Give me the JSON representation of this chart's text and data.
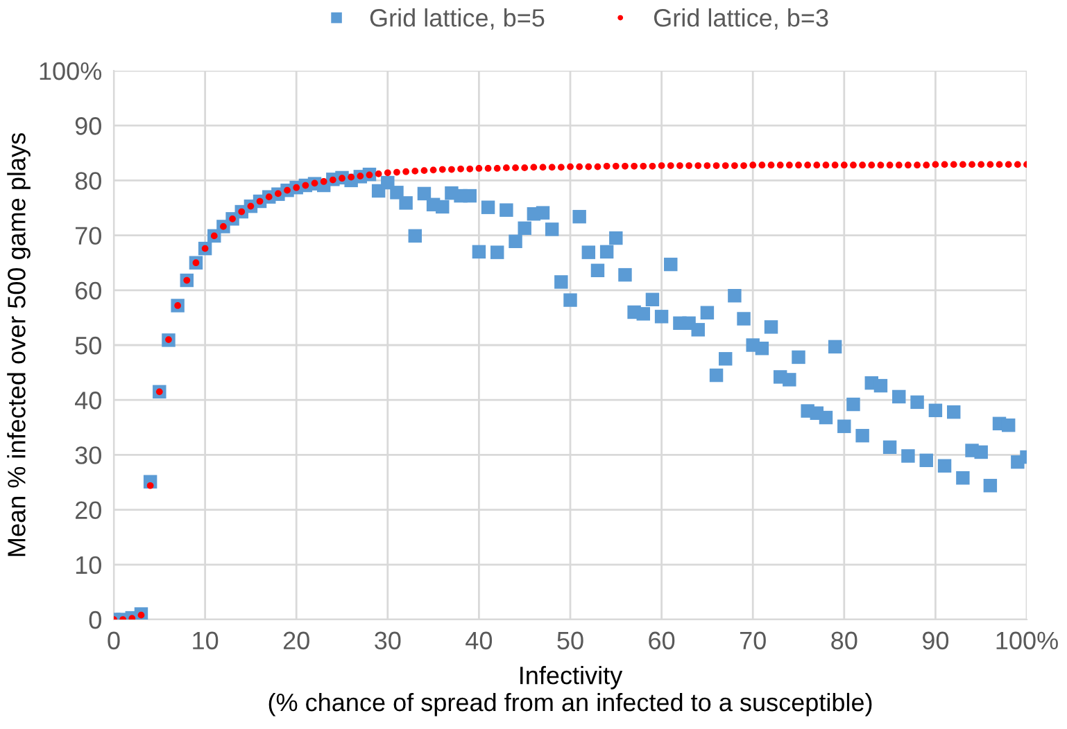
{
  "chart_data": {
    "type": "scatter",
    "xlabel": "Infectivity\n(% chance of spread from an infected to a susceptible)",
    "ylabel": "Mean % infected over 500 game plays",
    "x": [
      0,
      1,
      2,
      3,
      4,
      5,
      6,
      7,
      8,
      9,
      10,
      11,
      12,
      13,
      14,
      15,
      16,
      17,
      18,
      19,
      20,
      21,
      22,
      23,
      24,
      25,
      26,
      27,
      28,
      29,
      30,
      31,
      32,
      33,
      34,
      35,
      36,
      37,
      38,
      39,
      40,
      41,
      42,
      43,
      44,
      45,
      46,
      47,
      48,
      49,
      50,
      51,
      52,
      53,
      54,
      55,
      56,
      57,
      58,
      59,
      60,
      61,
      62,
      63,
      64,
      65,
      66,
      67,
      68,
      69,
      70,
      71,
      72,
      73,
      74,
      75,
      76,
      77,
      78,
      79,
      80,
      81,
      82,
      83,
      84,
      85,
      86,
      87,
      88,
      89,
      90,
      91,
      92,
      93,
      94,
      95,
      96,
      97,
      98,
      99,
      100
    ],
    "series": [
      {
        "name": "Grid lattice, b=5",
        "color": "#5b9bd5",
        "marker": "square",
        "values": [
          0,
          0,
          0.3,
          1.0,
          25.1,
          41.5,
          50.9,
          57.2,
          61.8,
          65,
          67.6,
          69.9,
          71.6,
          73,
          74.3,
          75.3,
          76.2,
          77,
          77.5,
          78.2,
          78.7,
          79.1,
          79.4,
          79.1,
          80.2,
          80.5,
          80,
          80.7,
          81.1,
          78.1,
          79.6,
          77.8,
          75.9,
          69.9,
          77.6,
          75.6,
          75.2,
          77.7,
          77.2,
          77.2,
          67,
          75.1,
          66.9,
          74.6,
          68.9,
          71.3,
          73.9,
          74.1,
          71.1,
          61.5,
          58.2,
          73.4,
          66.9,
          63.6,
          67,
          69.5,
          62.8,
          56,
          55.7,
          58.3,
          55.2,
          64.7,
          54,
          54,
          52.8,
          55.9,
          44.5,
          47.5,
          59,
          54.8,
          50,
          49.4,
          53.3,
          44.2,
          43.7,
          47.8,
          38,
          37.6,
          36.8,
          49.7,
          35.2,
          39.2,
          33.5,
          43.1,
          42.6,
          31.4,
          40.6,
          29.8,
          39.6,
          29,
          38.1,
          28,
          37.8,
          25.8,
          30.8,
          30.5,
          24.4,
          35.7,
          35.4,
          28.7,
          29.6
        ]
      },
      {
        "name": "Grid lattice, b=3",
        "color": "#ff0000",
        "marker": "circle",
        "values": [
          0,
          0,
          0.2,
          0.8,
          24.4,
          41.5,
          51,
          57.2,
          61.8,
          65,
          67.6,
          69.9,
          71.6,
          73,
          74.3,
          75.3,
          76.2,
          77,
          77.6,
          78.2,
          78.7,
          79.1,
          79.5,
          79.8,
          80.1,
          80.4,
          80.6,
          80.8,
          81,
          81.2,
          81.4,
          81.5,
          81.6,
          81.7,
          81.8,
          81.9,
          82,
          82,
          82.1,
          82.1,
          82.2,
          82.2,
          82.2,
          82.3,
          82.3,
          82.3,
          82.4,
          82.4,
          82.4,
          82.4,
          82.5,
          82.5,
          82.5,
          82.5,
          82.6,
          82.6,
          82.6,
          82.6,
          82.6,
          82.6,
          82.7,
          82.7,
          82.7,
          82.7,
          82.7,
          82.7,
          82.7,
          82.7,
          82.7,
          82.7,
          82.8,
          82.8,
          82.8,
          82.8,
          82.8,
          82.8,
          82.8,
          82.8,
          82.8,
          82.8,
          82.8,
          82.8,
          82.8,
          82.8,
          82.8,
          82.8,
          82.8,
          82.8,
          82.8,
          82.8,
          82.9,
          82.9,
          82.9,
          82.9,
          82.9,
          82.9,
          82.9,
          82.9,
          82.9,
          82.9,
          82.9
        ]
      }
    ],
    "xlim": [
      0,
      100
    ],
    "ylim": [
      0,
      100
    ],
    "xticks": [
      0,
      10,
      20,
      30,
      40,
      50,
      60,
      70,
      80,
      90,
      {
        "value": 100,
        "label": "100%"
      }
    ],
    "yticks": [
      0,
      10,
      20,
      30,
      40,
      50,
      60,
      70,
      80,
      90,
      {
        "value": 100,
        "label": "100%"
      }
    ],
    "grid": true,
    "legend": "top"
  }
}
